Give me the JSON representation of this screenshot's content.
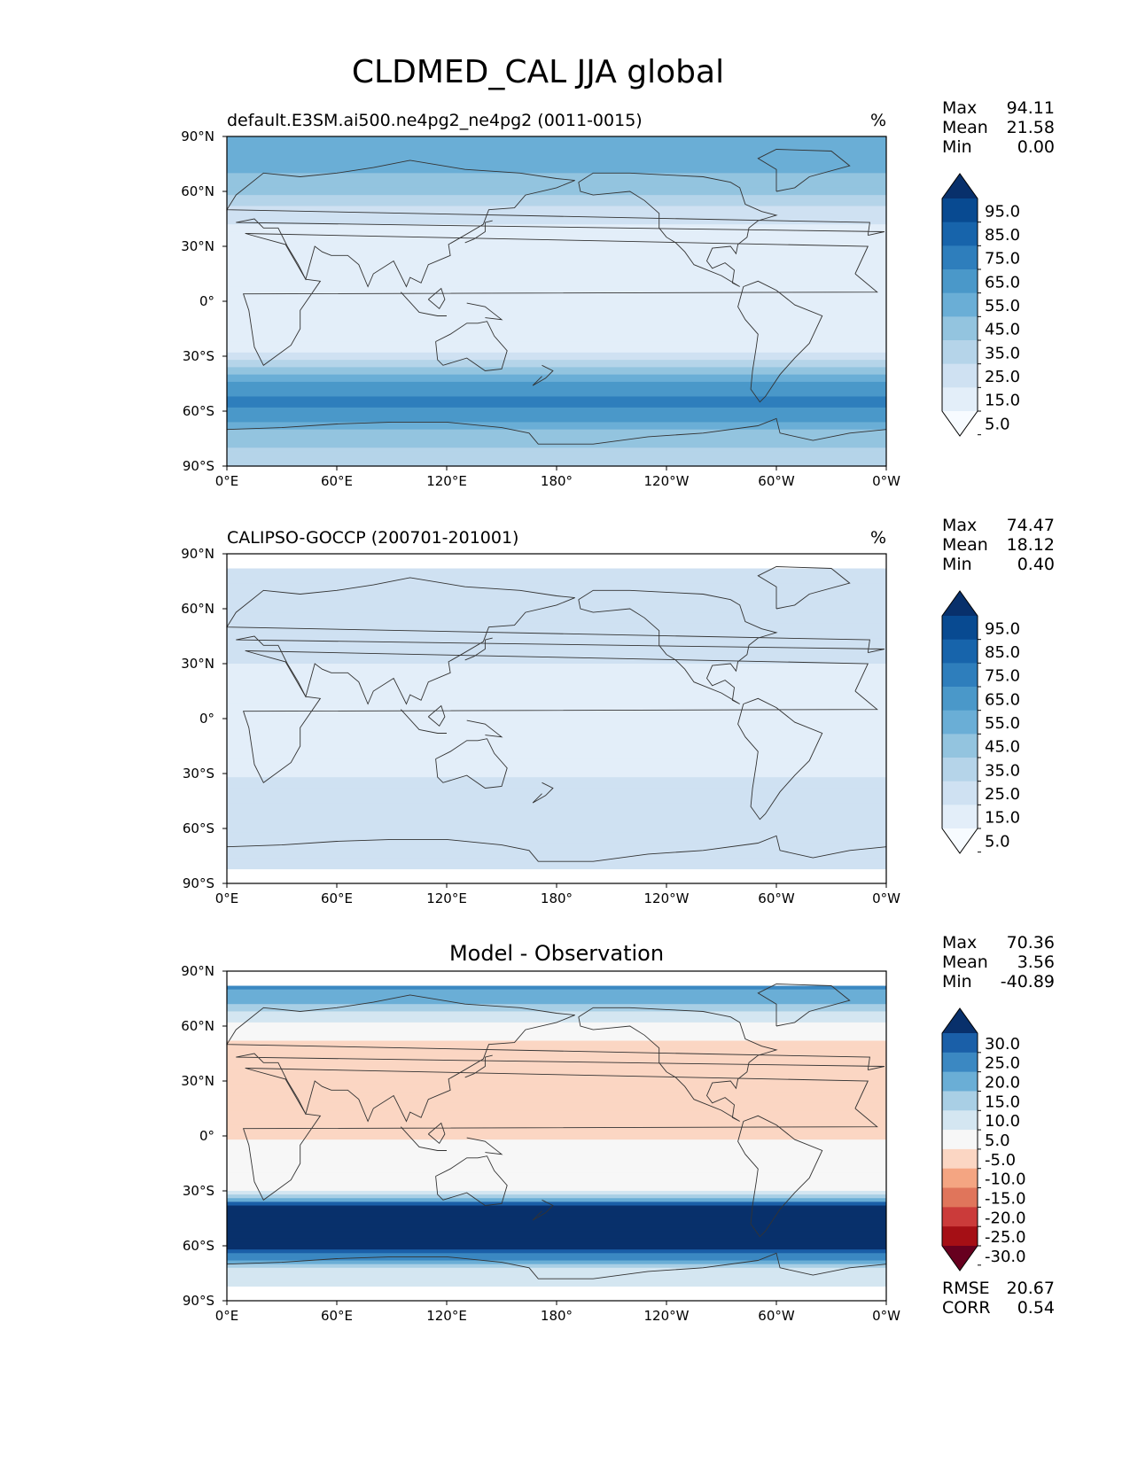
{
  "title": "CLDMED_CAL JJA global",
  "colors": {
    "blues": [
      "#f7fbff",
      "#deebf7",
      "#c6dbef",
      "#9ecae1",
      "#6baed6",
      "#4292c6",
      "#2171b5",
      "#08519c",
      "#08306b"
    ],
    "blues_bins": [
      "#f7fbff",
      "#e3eef9",
      "#cfe1f2",
      "#b5d4e9",
      "#93c4df",
      "#6aaed6",
      "#4a98c9",
      "#2e7ebc",
      "#1764ab",
      "#084a91",
      "#08306b"
    ],
    "rdbu": [
      "#67001f",
      "#a50f15",
      "#cb3b3a",
      "#e0755b",
      "#f4a582",
      "#fbd6c3",
      "#f7f7f7",
      "#d4e6f1",
      "#a9cfe5",
      "#6aaed6",
      "#3b88c2",
      "#1a5fa8",
      "#08306b"
    ],
    "coast": "#333333"
  },
  "chart_data": [
    {
      "type": "heatmap",
      "panel": "test",
      "title_left": "default.E3SM.ai500.ne4pg2_ne4pg2 (0011-0015)",
      "units": "%",
      "xticks": [
        "0°E",
        "60°E",
        "120°E",
        "180°",
        "120°W",
        "60°W",
        "0°W"
      ],
      "yticks": [
        "90°N",
        "60°N",
        "30°N",
        "0°",
        "30°S",
        "60°S",
        "90°S"
      ],
      "xlim": [
        0,
        360
      ],
      "ylim": [
        -90,
        90
      ],
      "stats": {
        "Max": "94.11",
        "Mean": "21.58",
        "Min": "0.00"
      },
      "colorbar": {
        "levels": [
          "95.0",
          "85.0",
          "75.0",
          "65.0",
          "55.0",
          "45.0",
          "35.0",
          "25.0",
          "15.0",
          "5.0"
        ],
        "extend": "both"
      },
      "lat_profile": [
        {
          "lat": 80,
          "value": 50
        },
        {
          "lat": 70,
          "value": 45
        },
        {
          "lat": 60,
          "value": 38
        },
        {
          "lat": 50,
          "value": 22
        },
        {
          "lat": 40,
          "value": 14
        },
        {
          "lat": 30,
          "value": 10
        },
        {
          "lat": 15,
          "value": 8
        },
        {
          "lat": 0,
          "value": 7
        },
        {
          "lat": -15,
          "value": 6
        },
        {
          "lat": -25,
          "value": 9
        },
        {
          "lat": -35,
          "value": 30
        },
        {
          "lat": -45,
          "value": 58
        },
        {
          "lat": -55,
          "value": 68
        },
        {
          "lat": -65,
          "value": 55
        },
        {
          "lat": -75,
          "value": 38
        },
        {
          "lat": -88,
          "value": 30
        }
      ]
    },
    {
      "type": "heatmap",
      "panel": "reference",
      "title_left": "CALIPSO-GOCCP (200701-201001)",
      "units": "%",
      "xticks": [
        "0°E",
        "60°E",
        "120°E",
        "180°",
        "120°W",
        "60°W",
        "0°W"
      ],
      "yticks": [
        "90°N",
        "60°N",
        "30°N",
        "0°",
        "30°S",
        "60°S",
        "90°S"
      ],
      "xlim": [
        0,
        360
      ],
      "ylim": [
        -90,
        90
      ],
      "stats": {
        "Max": "74.47",
        "Mean": "18.12",
        "Min": "0.40"
      },
      "colorbar": {
        "levels": [
          "95.0",
          "85.0",
          "75.0",
          "65.0",
          "55.0",
          "45.0",
          "35.0",
          "25.0",
          "15.0",
          "5.0"
        ],
        "extend": "both"
      },
      "lat_range": [
        -82,
        82
      ],
      "lat_profile": [
        {
          "lat": 82,
          "value": 24
        },
        {
          "lat": 70,
          "value": 22
        },
        {
          "lat": 60,
          "value": 22
        },
        {
          "lat": 45,
          "value": 18
        },
        {
          "lat": 30,
          "value": 15
        },
        {
          "lat": 15,
          "value": 13
        },
        {
          "lat": 0,
          "value": 14
        },
        {
          "lat": -15,
          "value": 10
        },
        {
          "lat": -30,
          "value": 14
        },
        {
          "lat": -45,
          "value": 22
        },
        {
          "lat": -60,
          "value": 25
        },
        {
          "lat": -82,
          "value": 22
        }
      ]
    },
    {
      "type": "heatmap",
      "panel": "difference",
      "title_center": "Model - Observation",
      "xticks": [
        "0°E",
        "60°E",
        "120°E",
        "180°",
        "120°W",
        "60°W",
        "0°W"
      ],
      "yticks": [
        "90°N",
        "60°N",
        "30°N",
        "0°",
        "30°S",
        "60°S",
        "90°S"
      ],
      "xlim": [
        0,
        360
      ],
      "ylim": [
        -90,
        90
      ],
      "stats": {
        "Max": "70.36",
        "Mean": "3.56",
        "Min": "-40.89"
      },
      "colorbar": {
        "levels": [
          "30.0",
          "25.0",
          "20.0",
          "15.0",
          "10.0",
          "5.0",
          "-5.0",
          "-10.0",
          "-15.0",
          "-20.0",
          "-25.0",
          "-30.0"
        ],
        "extend": "both"
      },
      "metrics": {
        "RMSE": "20.67",
        "CORR": "0.54"
      },
      "lat_range": [
        -82,
        82
      ],
      "lat_profile": [
        {
          "lat": 82,
          "value": 22
        },
        {
          "lat": 72,
          "value": 15
        },
        {
          "lat": 62,
          "value": 4
        },
        {
          "lat": 50,
          "value": -6
        },
        {
          "lat": 35,
          "value": -8
        },
        {
          "lat": 20,
          "value": -6
        },
        {
          "lat": 5,
          "value": -9
        },
        {
          "lat": -5,
          "value": -4
        },
        {
          "lat": -20,
          "value": -2
        },
        {
          "lat": -30,
          "value": 2
        },
        {
          "lat": -38,
          "value": 30
        },
        {
          "lat": -50,
          "value": 36
        },
        {
          "lat": -62,
          "value": 30
        },
        {
          "lat": -72,
          "value": 10
        },
        {
          "lat": -82,
          "value": 8
        }
      ]
    }
  ]
}
